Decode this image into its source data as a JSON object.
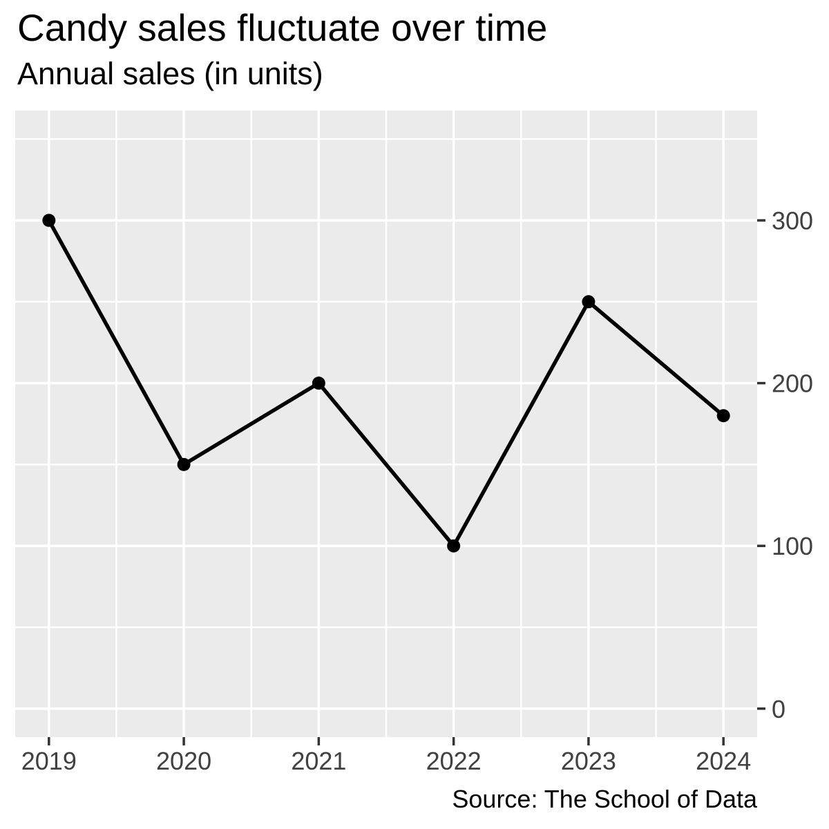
{
  "chart_data": {
    "type": "line",
    "title": "Candy sales fluctuate over time",
    "subtitle": "Annual sales (in units)",
    "caption": "Source: The School of Data",
    "x": [
      2019,
      2020,
      2021,
      2022,
      2023,
      2024
    ],
    "values": [
      300,
      150,
      200,
      100,
      250,
      180
    ],
    "x_tick_labels": [
      "2019",
      "2020",
      "2021",
      "2022",
      "2023",
      "2024"
    ],
    "y_major_ticks": [
      0,
      100,
      200,
      300
    ],
    "y_tick_labels": [
      "0",
      "100",
      "200",
      "300"
    ],
    "y_minor_ticks": [
      50,
      150,
      250,
      350
    ],
    "x_minor_ticks": [
      2019.5,
      2020.5,
      2021.5,
      2022.5,
      2023.5
    ],
    "xlim": [
      2018.75,
      2024.25
    ],
    "ylim": [
      -17.5,
      367.5
    ],
    "y_axis_side": "right",
    "grid": "major-and-minor",
    "legend": "none",
    "xlabel": "",
    "ylabel": "",
    "colors": {
      "panel_bg": "#EBEBEB",
      "grid": "#FFFFFF",
      "line": "#000000",
      "point": "#000000",
      "tick": "#333333",
      "axis_text": "#404040",
      "title_text": "#000000"
    }
  }
}
